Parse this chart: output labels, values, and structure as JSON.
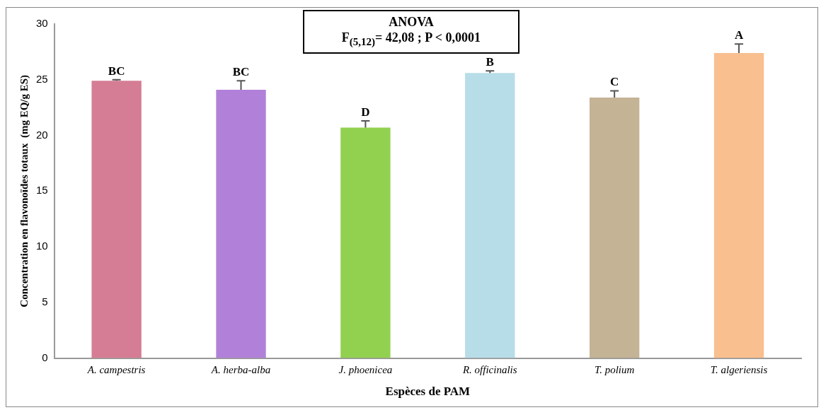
{
  "chart_data": {
    "type": "bar",
    "xlabel": "Espèces de PAM",
    "ylabel": "Concentration en flavonoïdes totaux  (mg EQ/g ES)",
    "categories": [
      "A. campestris",
      "A. herba-alba",
      "J. phoenicea",
      "R. officinalis",
      "T. polium",
      "T. algeriensis"
    ],
    "values": [
      24.9,
      24.1,
      20.7,
      25.6,
      23.4,
      27.4
    ],
    "colors": [
      "#d57d94",
      "#b181d9",
      "#92d050",
      "#b7dde8",
      "#c4b395",
      "#f9bf8f"
    ],
    "errors": [
      [
        24.9,
        25.0
      ],
      [
        24.1,
        24.9
      ],
      [
        20.7,
        21.3
      ],
      [
        25.6,
        25.8
      ],
      [
        23.4,
        24.0
      ],
      [
        27.4,
        28.2
      ]
    ],
    "ylim": [
      0,
      30
    ],
    "yticks": [
      0,
      5,
      10,
      15,
      20,
      25,
      30
    ],
    "grid": false,
    "legend": false,
    "annotations": [
      "ANOVA",
      "F$_{(5,12)}$= 42,08 ; P < 0,0001",
      {
        "text": "BC",
        "x": "A. campestris",
        "y": 25.0
      },
      {
        "text": "BC",
        "x": "A. herba-alba",
        "y": 24.9
      },
      {
        "text": "D",
        "x": "J. phoenicea",
        "y": 21.3
      },
      {
        "text": "B",
        "x": "R. officinalis",
        "y": 25.8
      },
      {
        "text": "C",
        "x": "T. polium",
        "y": 24.0
      },
      {
        "text": "A",
        "x": "T. algeriensis",
        "y": 28.2
      }
    ]
  }
}
